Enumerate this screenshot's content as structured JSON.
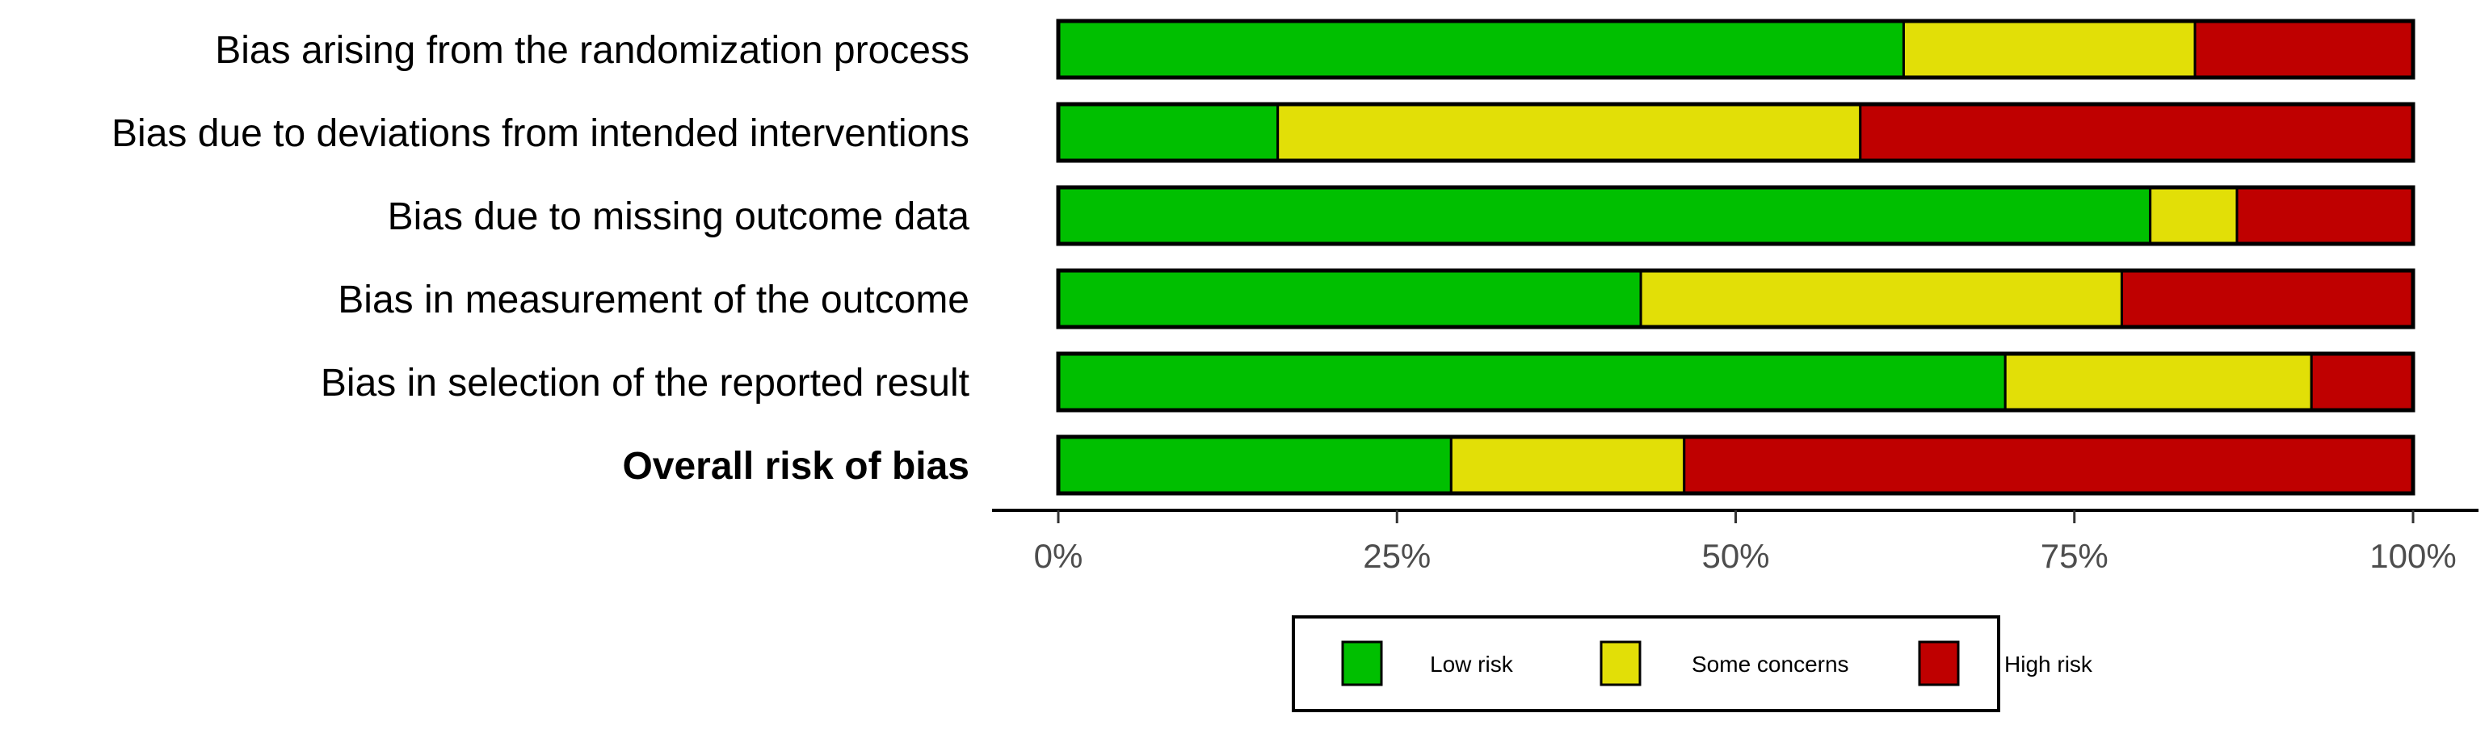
{
  "chart_data": {
    "type": "bar",
    "orientation": "horizontal",
    "stacked": true,
    "categories": [
      "Bias arising from the randomization process",
      "Bias due to deviations from intended interventions",
      "Bias due to missing outcome data",
      "Bias in measurement of the outcome",
      "Bias in selection of the reported result",
      "Overall risk of bias"
    ],
    "bold_categories": [
      "Overall risk of bias"
    ],
    "series": [
      {
        "name": "Low risk",
        "color": "#00BF00",
        "values": [
          62.4,
          16.2,
          80.6,
          43.0,
          69.9,
          29.0
        ]
      },
      {
        "name": "Some concerns",
        "color": "#E2DF07",
        "values": [
          21.5,
          43.0,
          6.4,
          35.5,
          22.6,
          17.2
        ]
      },
      {
        "name": "High risk",
        "color": "#BF0000",
        "values": [
          16.1,
          40.8,
          13.0,
          21.5,
          7.5,
          53.8
        ]
      }
    ],
    "x_ticks": [
      "0%",
      "25%",
      "50%",
      "75%",
      "100%"
    ],
    "xlim": [
      0,
      100
    ],
    "xlabel": "",
    "ylabel": "",
    "title": "",
    "grid": false,
    "legend_position": "bottom"
  }
}
